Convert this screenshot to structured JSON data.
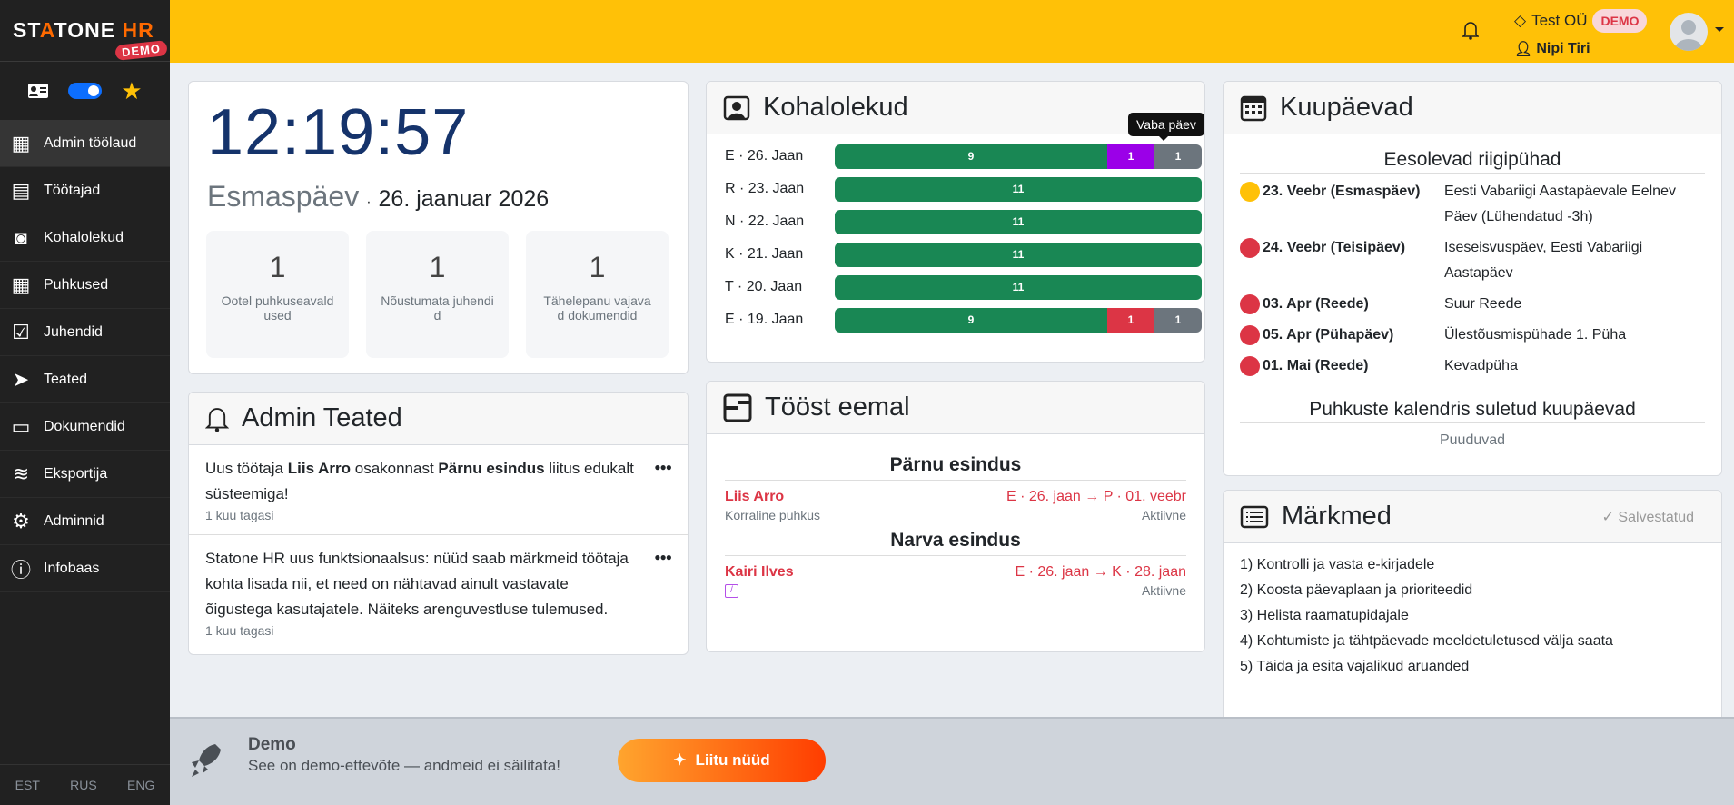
{
  "sidebar": {
    "logo": "STATONE HR",
    "logo_badge": "DEMO",
    "items": [
      {
        "label": "Admin töölaud",
        "icon": "dashboard-icon"
      },
      {
        "label": "Töötajad",
        "icon": "id-card-icon"
      },
      {
        "label": "Kohalolekud",
        "icon": "person-badge-icon"
      },
      {
        "label": "Puhkused",
        "icon": "calendar-icon"
      },
      {
        "label": "Juhendid",
        "icon": "file-check-icon"
      },
      {
        "label": "Teated",
        "icon": "send-icon"
      },
      {
        "label": "Dokumendid",
        "icon": "folder-icon"
      },
      {
        "label": "Eksportija",
        "icon": "database-icon"
      },
      {
        "label": "Adminnid",
        "icon": "user-gear-icon"
      },
      {
        "label": "Infobaas",
        "icon": "info-icon"
      }
    ],
    "languages": [
      "EST",
      "RUS",
      "ENG"
    ]
  },
  "header": {
    "company": "Test OÜ",
    "badge": "DEMO",
    "user": "Nipi Tiri",
    "accent": "#ffc107"
  },
  "clock": {
    "time": "12:19:57",
    "weekday": "Esmaspäev",
    "separator": "·",
    "date": "26. jaanuar 2026",
    "stats": [
      {
        "value": "1",
        "label": "Ootel puhkuseavaldused"
      },
      {
        "value": "1",
        "label": "Nõustumata juhendid"
      },
      {
        "value": "1",
        "label": "Tähelepanu vajavad dokumendid"
      }
    ]
  },
  "admin_notes": {
    "title": "Admin Teated",
    "items": [
      {
        "pre": "Uus töötaja ",
        "b1": "Liis Arro",
        "mid": " osakonnast ",
        "b2": "Pärnu esindus",
        "post": " liitus edukalt süsteemiga!",
        "time": "1 kuu tagasi"
      },
      {
        "pre": "Statone HR uus funktsionaalsus: nüüd saab märkmeid töötaja kohta lisada nii, et need on nähtavad ainult vastavate õigustega kasutajatele. Näiteks arenguvestluse tulemused.",
        "time": "1 kuu tagasi"
      }
    ]
  },
  "attendance": {
    "title": "Kohalolekud",
    "tooltip": "Vaba päev",
    "colors": {
      "present": "#198754",
      "purple": "#9b00e8",
      "red": "#dc3545",
      "gray": "#6c757d"
    },
    "rows": [
      {
        "label": "E · 26. Jaan",
        "segments": [
          {
            "value": 9,
            "type": "present"
          },
          {
            "value": 1,
            "type": "purple"
          },
          {
            "value": 1,
            "type": "gray"
          }
        ]
      },
      {
        "label": "R · 23. Jaan",
        "segments": [
          {
            "value": 11,
            "type": "present"
          }
        ]
      },
      {
        "label": "N · 22. Jaan",
        "segments": [
          {
            "value": 11,
            "type": "present"
          }
        ]
      },
      {
        "label": "K · 21. Jaan",
        "segments": [
          {
            "value": 11,
            "type": "present"
          }
        ]
      },
      {
        "label": "T · 20. Jaan",
        "segments": [
          {
            "value": 11,
            "type": "present"
          }
        ]
      },
      {
        "label": "E · 19. Jaan",
        "segments": [
          {
            "value": 9,
            "type": "present"
          },
          {
            "value": 1,
            "type": "red"
          },
          {
            "value": 1,
            "type": "gray"
          }
        ]
      }
    ]
  },
  "away": {
    "title": "Tööst eemal",
    "groups": [
      {
        "dept": "Pärnu esindus",
        "name": "Liis Arro",
        "type": "Korraline puhkus",
        "range": "E · 26. jaan → P · 01. veebr",
        "status": "Aktiivne"
      },
      {
        "dept": "Narva esindus",
        "name": "Kairi Ilves",
        "type": "",
        "range": "E · 26. jaan → K · 28. jaan",
        "status": "Aktiivne"
      }
    ]
  },
  "dates": {
    "title": "Kuupäevad",
    "holidays_title": "Eesolevad riigipühad",
    "holidays": [
      {
        "date": "23. Veebr (Esmaspäev)",
        "name": "Eesti Vabariigi Aastapäevale Eelnev Päev (Lühendatud -3h)",
        "color": "#ffc107"
      },
      {
        "date": "24. Veebr (Teisipäev)",
        "name": "Iseseisvuspäev, Eesti Vabariigi Aastapäev",
        "color": "#dc3545"
      },
      {
        "date": "03. Apr (Reede)",
        "name": "Suur Reede",
        "color": "#dc3545"
      },
      {
        "date": "05. Apr (Pühapäev)",
        "name": "Ülestõusmispühade 1. Püha",
        "color": "#dc3545"
      },
      {
        "date": "01. Mai (Reede)",
        "name": "Kevadpüha",
        "color": "#dc3545"
      }
    ],
    "closed_title": "Puhkuste kalendris suletud kuupäevad",
    "closed_value": "Puuduvad"
  },
  "memo": {
    "title": "Märkmed",
    "saved": "Salvestatud",
    "lines": [
      "1) Kontrolli ja vasta e-kirjadele",
      "2) Koosta päevaplaan ja prioriteedid",
      "3) Helista raamatupidajale",
      "4) Kohtumiste ja tähtpäevade meeldetuletused välja saata",
      "5) Täida ja esita vajalikud aruanded"
    ]
  },
  "banner": {
    "title": "Demo",
    "text": "See on demo-ettevõte — andmeid ei säilitata!",
    "button": "Liitu nüüd"
  }
}
